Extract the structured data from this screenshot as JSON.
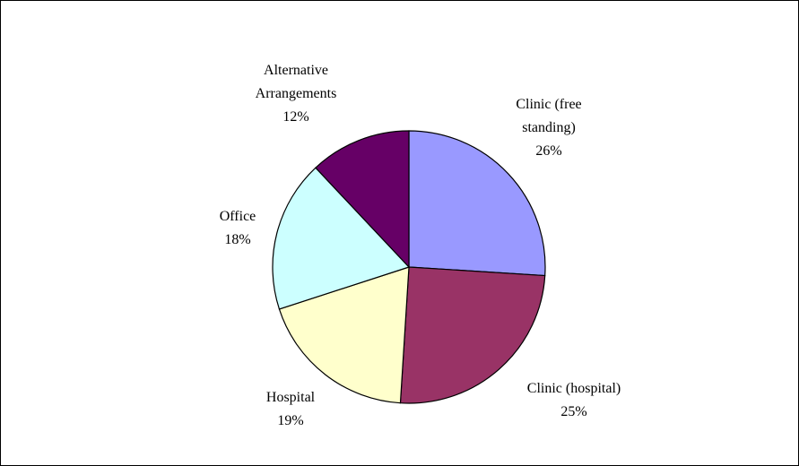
{
  "chart_data": {
    "type": "pie",
    "categories": [
      "Clinic (free standing)",
      "Clinic (hospital)",
      "Hospital",
      "Office",
      "Alternative Arrangements"
    ],
    "values": [
      26,
      25,
      19,
      18,
      12
    ],
    "value_labels": [
      "26%",
      "25%",
      "19%",
      "18%",
      "12%"
    ],
    "colors": [
      "#9999ff",
      "#993366",
      "#ffffcc",
      "#ccffff",
      "#660066"
    ]
  }
}
